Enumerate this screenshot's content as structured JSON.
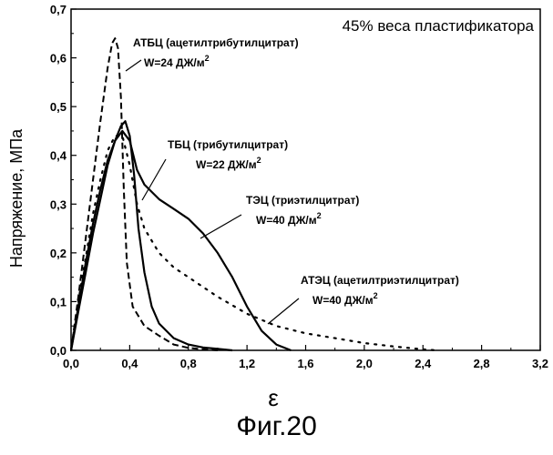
{
  "chart_data": {
    "type": "line",
    "title": "45% веса пластификатора",
    "xlabel": "ε",
    "ylabel": "Напряжение, МПа",
    "xlim": [
      0.0,
      3.2
    ],
    "ylim": [
      0.0,
      0.7
    ],
    "xticks": [
      "0,0",
      "0,4",
      "0,8",
      "1,2",
      "1,6",
      "2,0",
      "2,4",
      "2,8",
      "3,2"
    ],
    "xtick_values": [
      0.0,
      0.4,
      0.8,
      1.2,
      1.6,
      2.0,
      2.4,
      2.8,
      3.2
    ],
    "yticks": [
      "0,0",
      "0,1",
      "0,2",
      "0,3",
      "0,4",
      "0,5",
      "0,6",
      "0,7"
    ],
    "ytick_values": [
      0.0,
      0.1,
      0.2,
      0.3,
      0.4,
      0.5,
      0.6,
      0.7
    ],
    "grid": false,
    "series": [
      {
        "name": "АТБЦ",
        "style": "dashed",
        "x": [
          0.0,
          0.05,
          0.1,
          0.15,
          0.2,
          0.25,
          0.28,
          0.3,
          0.32,
          0.34,
          0.36,
          0.38,
          0.42,
          0.5,
          0.6,
          0.7,
          0.8,
          0.9,
          1.0
        ],
        "y": [
          0.0,
          0.11,
          0.23,
          0.35,
          0.47,
          0.58,
          0.63,
          0.64,
          0.62,
          0.52,
          0.33,
          0.18,
          0.09,
          0.05,
          0.03,
          0.012,
          0.005,
          0.002,
          0.0
        ]
      },
      {
        "name": "ТБЦ",
        "style": "solid",
        "x": [
          0.0,
          0.05,
          0.1,
          0.15,
          0.2,
          0.25,
          0.3,
          0.34,
          0.37,
          0.4,
          0.43,
          0.46,
          0.5,
          0.55,
          0.6,
          0.7,
          0.8,
          0.9,
          1.0,
          1.1
        ],
        "y": [
          0.0,
          0.08,
          0.16,
          0.24,
          0.31,
          0.38,
          0.43,
          0.46,
          0.47,
          0.44,
          0.36,
          0.25,
          0.16,
          0.09,
          0.055,
          0.025,
          0.012,
          0.006,
          0.003,
          0.0
        ]
      },
      {
        "name": "ТЭЦ",
        "style": "solid",
        "x": [
          0.0,
          0.05,
          0.1,
          0.15,
          0.2,
          0.25,
          0.3,
          0.35,
          0.4,
          0.45,
          0.5,
          0.6,
          0.7,
          0.8,
          0.9,
          1.0,
          1.1,
          1.2,
          1.3,
          1.4,
          1.5
        ],
        "y": [
          0.0,
          0.09,
          0.18,
          0.26,
          0.33,
          0.39,
          0.43,
          0.45,
          0.43,
          0.37,
          0.34,
          0.31,
          0.29,
          0.27,
          0.24,
          0.2,
          0.15,
          0.09,
          0.04,
          0.012,
          0.0
        ]
      },
      {
        "name": "АТЭЦ",
        "style": "dotted",
        "x": [
          0.0,
          0.05,
          0.1,
          0.15,
          0.2,
          0.25,
          0.3,
          0.35,
          0.4,
          0.45,
          0.5,
          0.6,
          0.7,
          0.8,
          1.0,
          1.2,
          1.4,
          1.6,
          1.8,
          2.0,
          2.2,
          2.4,
          2.5
        ],
        "y": [
          0.0,
          0.1,
          0.19,
          0.28,
          0.35,
          0.41,
          0.44,
          0.44,
          0.38,
          0.3,
          0.25,
          0.2,
          0.17,
          0.15,
          0.11,
          0.075,
          0.05,
          0.035,
          0.025,
          0.015,
          0.008,
          0.002,
          0.0
        ]
      }
    ],
    "annotations": [
      {
        "lines": [
          "АТБЦ (ацетилтрибутилцитрат)",
          "W=24 ДЖ/м"
        ],
        "sup": "2"
      },
      {
        "lines": [
          "ТБЦ (трибутилцитрат)",
          "W=22 ДЖ/м"
        ],
        "sup": "2"
      },
      {
        "lines": [
          "ТЭЦ (триэтилцитрат)",
          "W=40 ДЖ/м"
        ],
        "sup": "2"
      },
      {
        "lines": [
          "АТЭЦ (ацетилтриэтилцитрат)",
          "W=40 ДЖ/м"
        ],
        "sup": "2"
      }
    ]
  },
  "caption": "Фиг.20"
}
